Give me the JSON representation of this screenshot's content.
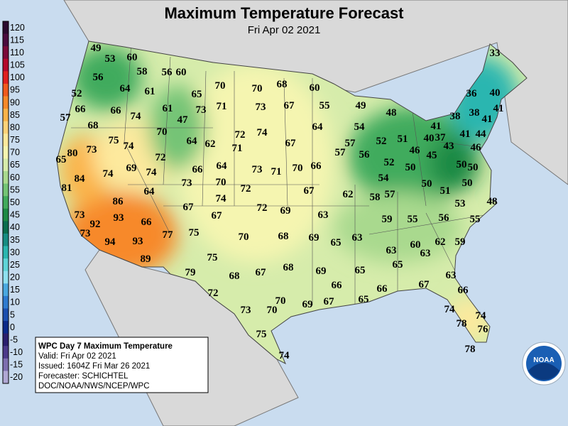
{
  "header": {
    "title": "Maximum Temperature Forecast",
    "subtitle": "Fri Apr 02 2021"
  },
  "legend": {
    "values": [
      120,
      115,
      110,
      105,
      100,
      95,
      90,
      85,
      80,
      75,
      70,
      65,
      60,
      55,
      50,
      45,
      40,
      35,
      30,
      25,
      20,
      15,
      10,
      5,
      0,
      -5,
      -10,
      -15,
      -20
    ],
    "colors": [
      "#2b0a2e",
      "#4a0b3e",
      "#7a0a3a",
      "#b50a2c",
      "#e0201f",
      "#f05a1e",
      "#f7892a",
      "#fbb349",
      "#fdd279",
      "#fde99d",
      "#f5f5b0",
      "#d6ecab",
      "#a9d98e",
      "#74c476",
      "#41ab5d",
      "#1d8a45",
      "#0b6e4f",
      "#178c83",
      "#2bb6b0",
      "#5fd4d8",
      "#8ee0f0",
      "#4aa9e0",
      "#2e7bd0",
      "#1a4fb0",
      "#0a2a8a",
      "#2a1f6e",
      "#4b3a8a",
      "#7d6fb0",
      "#b0a8d4"
    ]
  },
  "temperatures": [
    49,
    53,
    60,
    58,
    56,
    60,
    33,
    56,
    52,
    64,
    61,
    65,
    70,
    70,
    68,
    60,
    66,
    66,
    74,
    61,
    73,
    71,
    73,
    67,
    55,
    49,
    48,
    36,
    40,
    38,
    38,
    41,
    41,
    57,
    68,
    70,
    47,
    72,
    74,
    64,
    54,
    52,
    51,
    41,
    40,
    37,
    41,
    44,
    75,
    74,
    64,
    62,
    71,
    67,
    57,
    46,
    45,
    43,
    46,
    65,
    80,
    73,
    72,
    57,
    56,
    52,
    50,
    69,
    74,
    66,
    64,
    73,
    71,
    70,
    66,
    50,
    50,
    74,
    84,
    73,
    70,
    72,
    54,
    50,
    50,
    81,
    64,
    67,
    62,
    58,
    57,
    51,
    48,
    53,
    86,
    74,
    67,
    72,
    69,
    73,
    93,
    66,
    67,
    63,
    59,
    55,
    56,
    55,
    92,
    73,
    77,
    75,
    70,
    68,
    69,
    65,
    63,
    62,
    59,
    94,
    93,
    60,
    63,
    63,
    89,
    75,
    68,
    67,
    69,
    65,
    65,
    79,
    68,
    63,
    66,
    66,
    67,
    66,
    72,
    70,
    69,
    67,
    65,
    73,
    70,
    74,
    74,
    78,
    76,
    75,
    78,
    74
  ],
  "info_box": {
    "lines": [
      "WPC Day 7 Maximum Temperature",
      "Valid: Fri Apr 02 2021",
      "Issued: 1604Z Fri Mar 26 2021",
      "Forecaster: SCHICHTEL",
      "DOC/NOAA/NWS/NCEP/WPC"
    ]
  },
  "logo": {
    "text": "NOAA"
  }
}
